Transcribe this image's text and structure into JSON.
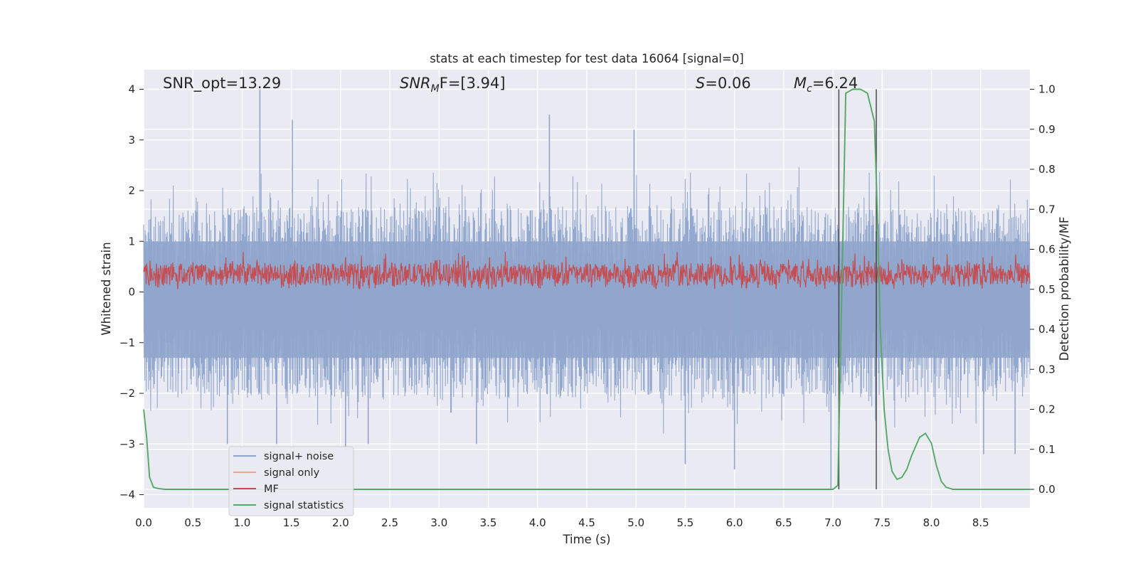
{
  "chart_data": {
    "type": "line",
    "title": "stats at each timestep for test data 16064 [signal=0]",
    "xlabel": "Time (s)",
    "ylabel": "Whitened strain",
    "ylabel_right": "Detection probability/MF",
    "xlim": [
      0.0,
      9.0
    ],
    "ylim": [
      -4.4,
      4.4
    ],
    "ylim_right": [
      -0.05,
      1.05
    ],
    "x_ticks": [
      0.0,
      0.5,
      1.0,
      1.5,
      2.0,
      2.5,
      3.0,
      3.5,
      4.0,
      4.5,
      5.0,
      5.5,
      6.0,
      6.5,
      7.0,
      7.5,
      8.0,
      8.5
    ],
    "x_tick_labels": [
      "0.0",
      "0.5",
      "1.0",
      "1.5",
      "2.0",
      "2.5",
      "3.0",
      "3.5",
      "4.0",
      "4.5",
      "5.0",
      "5.5",
      "6.0",
      "6.5",
      "7.0",
      "7.5",
      "8.0",
      "8.5"
    ],
    "y_ticks": [
      4,
      3,
      2,
      1,
      0,
      -1,
      -2,
      -3,
      -4
    ],
    "y_tick_labels": [
      "4",
      "3",
      "2",
      "1",
      "0",
      "−1",
      "−2",
      "−3",
      "−4"
    ],
    "y_ticks_right": [
      1.0,
      0.9,
      0.8,
      0.7,
      0.6,
      0.5,
      0.4,
      0.3,
      0.2,
      0.1,
      0.0
    ],
    "y_tick_labels_right": [
      "1.0",
      "0.9",
      "0.8",
      "0.7",
      "0.6",
      "0.5",
      "0.4",
      "0.3",
      "0.2",
      "0.1",
      "0.0"
    ],
    "annotations": {
      "snr_opt": "SNR_opt=13.29",
      "snr_mf_var": "SNR",
      "snr_mf_sub": "M",
      "snr_mf_rest": "F=[3.94]",
      "s_var": "S",
      "s_rest": "=0.06",
      "mc_var": "M",
      "mc_sub": "c",
      "mc_rest": "=6.24"
    },
    "legend": [
      {
        "label": "signal+ noise",
        "color": "#8fa5cc"
      },
      {
        "label": "signal only",
        "color": "#e8a58c"
      },
      {
        "label": "MF",
        "color": "#c44e52"
      },
      {
        "label": "signal statistics",
        "color": "#55a868"
      }
    ],
    "legend_position": "lower-left",
    "grid": true,
    "series": [
      {
        "name": "signal+ noise",
        "axis": "left",
        "kind": "noise",
        "x_range": [
          0.0,
          9.0
        ],
        "n_points": 2400,
        "approx_lower_envelope": -2.2,
        "approx_upper_envelope": 2.2,
        "peaks": [
          {
            "x": 1.18,
            "y": 4.0
          },
          {
            "x": 1.51,
            "y": 3.4
          },
          {
            "x": 4.12,
            "y": 3.5
          },
          {
            "x": 4.98,
            "y": 3.2
          },
          {
            "x": 5.5,
            "y": -3.4
          },
          {
            "x": 6.0,
            "y": -3.5
          },
          {
            "x": 6.98,
            "y": -3.9
          },
          {
            "x": 0.85,
            "y": -3.0
          },
          {
            "x": 1.35,
            "y": -3.0
          },
          {
            "x": 2.05,
            "y": -3.1
          },
          {
            "x": 2.28,
            "y": -3.0
          },
          {
            "x": 3.38,
            "y": -3.0
          },
          {
            "x": 8.85,
            "y": -3.2
          },
          {
            "x": 8.53,
            "y": -3.2
          }
        ]
      },
      {
        "name": "MF",
        "axis": "right",
        "kind": "noise",
        "x_range": [
          0.0,
          9.0
        ],
        "n_points": 1800,
        "approx_range": [
          0.5,
          0.6
        ]
      },
      {
        "name": "signal statistics",
        "axis": "right",
        "x": [
          0.0,
          0.03,
          0.06,
          0.1,
          0.15,
          0.22,
          0.3,
          0.5,
          1.0,
          2.0,
          3.0,
          4.0,
          5.0,
          6.0,
          6.9,
          7.0,
          7.05,
          7.09,
          7.13,
          7.2,
          7.28,
          7.35,
          7.42,
          7.45,
          7.48,
          7.52,
          7.56,
          7.6,
          7.65,
          7.7,
          7.75,
          7.8,
          7.88,
          7.94,
          8.0,
          8.05,
          8.1,
          8.15,
          8.22,
          8.3,
          8.5,
          9.0
        ],
        "y": [
          0.2,
          0.13,
          0.03,
          0.005,
          0.002,
          0.0,
          0.0,
          0.0,
          0.0,
          0.0,
          0.0,
          0.0,
          0.0,
          0.0,
          0.0,
          0.0,
          0.01,
          0.5,
          0.99,
          1.0,
          1.0,
          0.99,
          0.92,
          0.7,
          0.4,
          0.2,
          0.1,
          0.045,
          0.025,
          0.03,
          0.05,
          0.085,
          0.13,
          0.14,
          0.115,
          0.06,
          0.02,
          0.005,
          0.0,
          0.0,
          0.0,
          0.0
        ]
      }
    ],
    "vertical_lines": [
      {
        "x": 7.06,
        "y_from": 0.0,
        "y_to": 1.0
      },
      {
        "x": 7.44,
        "y_from": 0.0,
        "y_to": 1.0
      }
    ]
  }
}
